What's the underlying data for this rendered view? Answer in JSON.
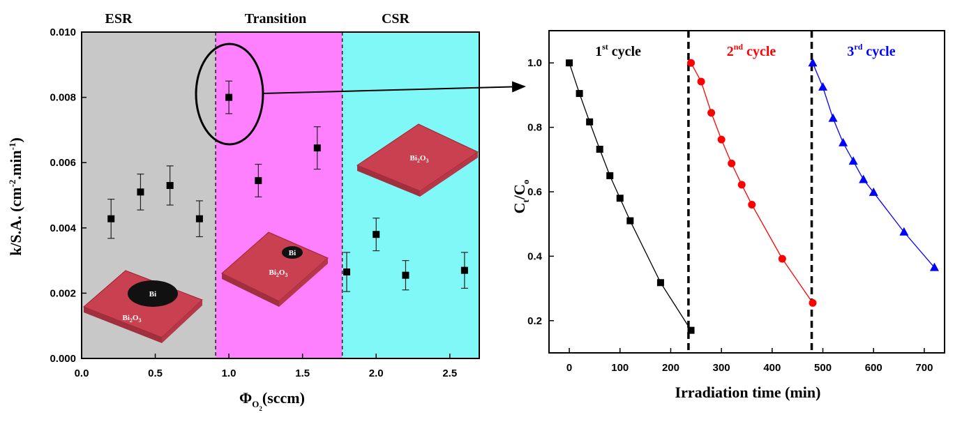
{
  "chart_data": [
    {
      "type": "scatter",
      "title": "",
      "xlabel": "Φ",
      "xlabel_sub": "O",
      "xlabel_subsub": "2",
      "xlabel_unit": "(sccm)",
      "ylabel": "k/S.A. (cm",
      "ylabel_exp1": "-2",
      "ylabel_mid": ".min",
      "ylabel_exp2": "-1",
      "ylabel_end": ")",
      "xlim": [
        0,
        2.7
      ],
      "ylim": [
        0,
        0.01
      ],
      "xticks": [
        "0.0",
        "0.5",
        "1.0",
        "1.5",
        "2.0",
        "2.5"
      ],
      "yticks": [
        "0.000",
        "0.002",
        "0.004",
        "0.006",
        "0.008",
        "0.010"
      ],
      "regions": [
        {
          "label": "ESR",
          "x0": 0,
          "x1": 0.91,
          "color": "#c8c8c8"
        },
        {
          "label": "Transition",
          "x0": 0.91,
          "x1": 1.77,
          "color": "#ff80ff"
        },
        {
          "label": "CSR",
          "x0": 1.77,
          "x1": 2.7,
          "color": "#80f8f8"
        }
      ],
      "points": [
        {
          "x": 0.2,
          "y": 0.00428,
          "err": 0.0006
        },
        {
          "x": 0.4,
          "y": 0.0051,
          "err": 0.00055
        },
        {
          "x": 0.6,
          "y": 0.0053,
          "err": 0.0006
        },
        {
          "x": 0.8,
          "y": 0.00428,
          "err": 0.00055
        },
        {
          "x": 1.0,
          "y": 0.008,
          "err": 0.0005
        },
        {
          "x": 1.2,
          "y": 0.00545,
          "err": 0.0005
        },
        {
          "x": 1.6,
          "y": 0.00645,
          "err": 0.00065
        },
        {
          "x": 1.8,
          "y": 0.00265,
          "err": 0.0006
        },
        {
          "x": 2.0,
          "y": 0.0038,
          "err": 0.0005
        },
        {
          "x": 2.2,
          "y": 0.00255,
          "err": 0.00045
        },
        {
          "x": 2.6,
          "y": 0.0027,
          "err": 0.00055
        }
      ],
      "insets": {
        "bi": "Bi",
        "oxide_main": "Bi",
        "oxide_sub": "2",
        "oxide_mid": "O",
        "oxide_sub2": "3"
      }
    },
    {
      "type": "line",
      "title": "",
      "xlabel": "Irradiation time (min)",
      "ylabel": "C",
      "ylabel_sub1": "t",
      "ylabel_mid": "/C",
      "ylabel_sub2": "o",
      "xlim": [
        -40,
        740
      ],
      "ylim": [
        0.1,
        1.1
      ],
      "xticks": [
        "0",
        "100",
        "200",
        "300",
        "400",
        "500",
        "600",
        "700"
      ],
      "yticks": [
        "0.2",
        "0.4",
        "0.6",
        "0.8",
        "1.0"
      ],
      "dividers": [
        235,
        478
      ],
      "series": [
        {
          "label_num": "1",
          "label_sup": "st",
          "label_word": "cycle",
          "color": "#000000",
          "marker": "square",
          "x": [
            0,
            20,
            40,
            60,
            80,
            100,
            120,
            180,
            240
          ],
          "y": [
            1.0,
            0.905,
            0.817,
            0.732,
            0.65,
            0.58,
            0.51,
            0.318,
            0.17
          ]
        },
        {
          "label_num": "2",
          "label_sup": "nd",
          "label_word": "cycle",
          "color": "#ff0000",
          "marker": "circle",
          "x": [
            240,
            260,
            280,
            300,
            320,
            340,
            360,
            420,
            480
          ],
          "y": [
            1.0,
            0.942,
            0.845,
            0.762,
            0.688,
            0.622,
            0.56,
            0.392,
            0.255
          ]
        },
        {
          "label_num": "3",
          "label_sup": "rd",
          "label_word": "cycle",
          "color": "#0000ff",
          "marker": "triangle",
          "x": [
            480,
            500,
            520,
            540,
            560,
            580,
            600,
            660,
            720
          ],
          "y": [
            1.0,
            0.925,
            0.828,
            0.752,
            0.695,
            0.638,
            0.598,
            0.475,
            0.365
          ]
        }
      ]
    }
  ]
}
